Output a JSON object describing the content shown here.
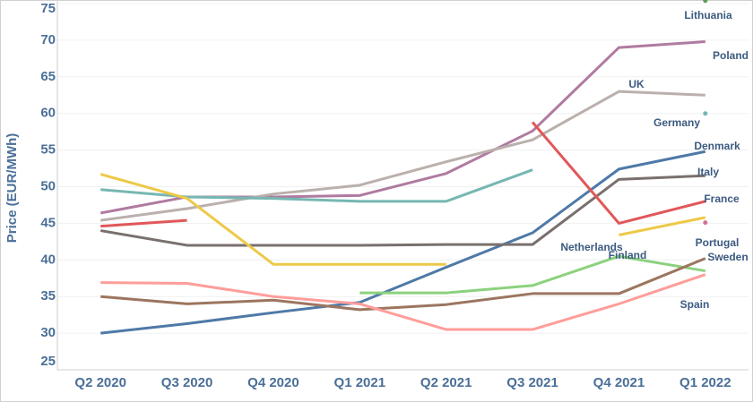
{
  "chart_data": {
    "type": "line",
    "y_label": "Price (EUR/MWh)",
    "categories": [
      "Q2 2020",
      "Q3 2020",
      "Q4 2020",
      "Q1 2021",
      "Q2 2021",
      "Q3 2021",
      "Q4 2021",
      "Q1 2022"
    ],
    "ylim": [
      25,
      75
    ],
    "yticks": [
      25,
      30,
      35,
      40,
      45,
      50,
      55,
      60,
      65,
      70,
      75
    ],
    "grid": true,
    "series": [
      {
        "name": "Lithuania",
        "color": "#59a14f",
        "values": [
          null,
          null,
          null,
          null,
          null,
          null,
          null,
          75.4
        ]
      },
      {
        "name": "Poland",
        "color": "#b07aa1",
        "values": [
          46.4,
          48.6,
          48.6,
          48.8,
          51.8,
          57.6,
          69,
          69.8
        ]
      },
      {
        "name": "UK",
        "color": "#bab0ac",
        "values": [
          45.4,
          47,
          49,
          50.2,
          53.4,
          56.4,
          63,
          62.5
        ]
      },
      {
        "name": "Germany",
        "color": "#76b7b2",
        "values": [
          49.6,
          48.6,
          48.4,
          48,
          48,
          52.3,
          null,
          60
        ]
      },
      {
        "name": "Denmark",
        "color": "#4e79a7",
        "values": [
          30,
          31.3,
          32.8,
          34.2,
          39,
          43.7,
          52.4,
          54.8
        ]
      },
      {
        "name": "Italy",
        "color": "#79706e",
        "values": [
          44,
          42,
          42,
          42,
          42.1,
          42.1,
          51,
          51.5
        ]
      },
      {
        "name": "France",
        "color": "#e15759",
        "values": [
          44.6,
          45.4,
          null,
          null,
          null,
          58.8,
          45,
          48
        ]
      },
      {
        "name": "Netherlands",
        "color": "#d37295",
        "values": [
          null,
          null,
          null,
          null,
          null,
          null,
          null,
          45.1
        ]
      },
      {
        "name": "Portugal",
        "color": "#edc948",
        "values": [
          51.7,
          48.4,
          39.4,
          39.4,
          39.4,
          null,
          43.4,
          45.8
        ]
      },
      {
        "name": "Finland",
        "color": "#8cd17d",
        "values": [
          null,
          null,
          null,
          35.5,
          35.5,
          36.5,
          40.5,
          38.5
        ]
      },
      {
        "name": "Sweden",
        "color": "#9c755f",
        "values": [
          35,
          34,
          34.5,
          33.2,
          33.9,
          35.4,
          35.4,
          40.2
        ]
      },
      {
        "name": "Spain",
        "color": "#ff9d9a",
        "values": [
          36.9,
          36.8,
          35,
          34,
          30.5,
          30.5,
          34,
          38
        ]
      }
    ]
  }
}
